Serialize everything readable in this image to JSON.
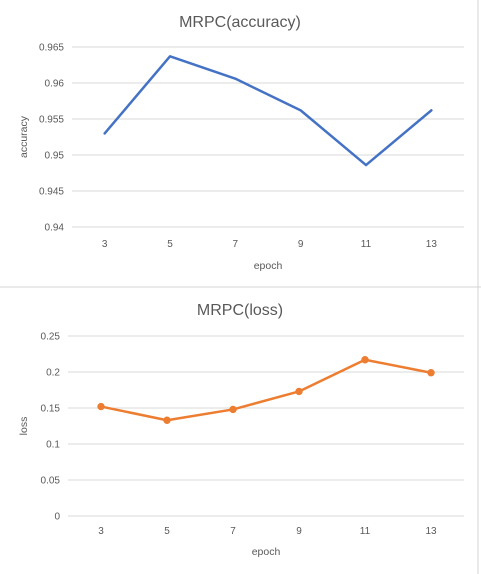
{
  "chart_data": [
    {
      "type": "line",
      "title": "MRPC(accuracy)",
      "xlabel": "epoch",
      "ylabel": "accuracy",
      "categories": [
        "3",
        "5",
        "7",
        "9",
        "11",
        "13"
      ],
      "series": [
        {
          "values": [
            0.953,
            0.9637,
            0.9606,
            0.9562,
            0.9486,
            0.9562
          ],
          "color": "#4472c4",
          "markers": false
        }
      ],
      "ylim": [
        0.94,
        0.965
      ],
      "yticks": [
        "0.94",
        "0.945",
        "0.95",
        "0.955",
        "0.96",
        "0.965"
      ],
      "grid": true,
      "legend": "none"
    },
    {
      "type": "line",
      "title": "MRPC(loss)",
      "xlabel": "epoch",
      "ylabel": "loss",
      "categories": [
        "3",
        "5",
        "7",
        "9",
        "11",
        "13"
      ],
      "series": [
        {
          "values": [
            0.152,
            0.133,
            0.148,
            0.173,
            0.217,
            0.199
          ],
          "color": "#ed7d31",
          "markers": true
        }
      ],
      "ylim": [
        0,
        0.25
      ],
      "yticks": [
        "0",
        "0.05",
        "0.1",
        "0.15",
        "0.2",
        "0.25"
      ],
      "grid": true,
      "legend": "none"
    }
  ]
}
